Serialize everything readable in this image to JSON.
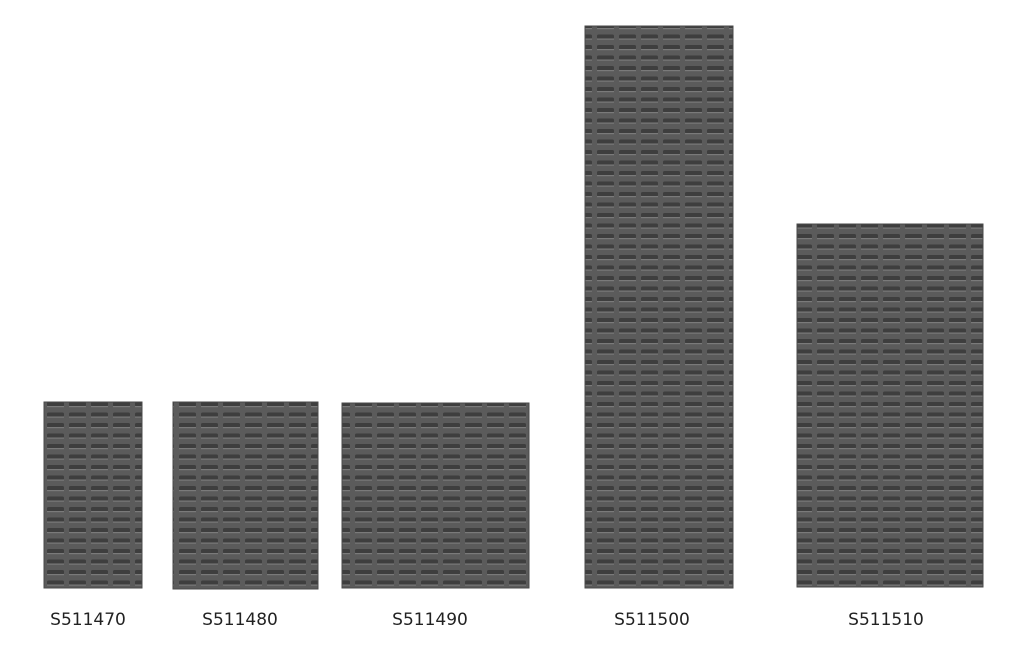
{
  "panels": [
    {
      "label": "S511470"
    },
    {
      "label": "S511480"
    },
    {
      "label": "S511490"
    },
    {
      "label": "S511500"
    },
    {
      "label": "S511510"
    }
  ]
}
